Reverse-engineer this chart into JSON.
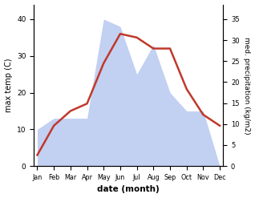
{
  "months": [
    "Jan",
    "Feb",
    "Mar",
    "Apr",
    "May",
    "Jun",
    "Jul",
    "Aug",
    "Sep",
    "Oct",
    "Nov",
    "Dec"
  ],
  "temperature": [
    3,
    11,
    15,
    17,
    28,
    36,
    35,
    32,
    32,
    21,
    14,
    11
  ],
  "precipitation_left": [
    10,
    13,
    13,
    13,
    40,
    38,
    25,
    33,
    20,
    15,
    15,
    0
  ],
  "temp_color": "#c0392b",
  "precip_fill_color": "#b8c8f0",
  "xlabel": "date (month)",
  "ylabel_left": "max temp (C)",
  "ylabel_right": "med. precipitation (kg/m2)",
  "ylim_left": [
    0,
    44
  ],
  "ylim_right": [
    0,
    38.5
  ],
  "yticks_left": [
    0,
    10,
    20,
    30,
    40
  ],
  "yticks_right": [
    0,
    5,
    10,
    15,
    20,
    25,
    30,
    35
  ],
  "background_color": "#ffffff"
}
